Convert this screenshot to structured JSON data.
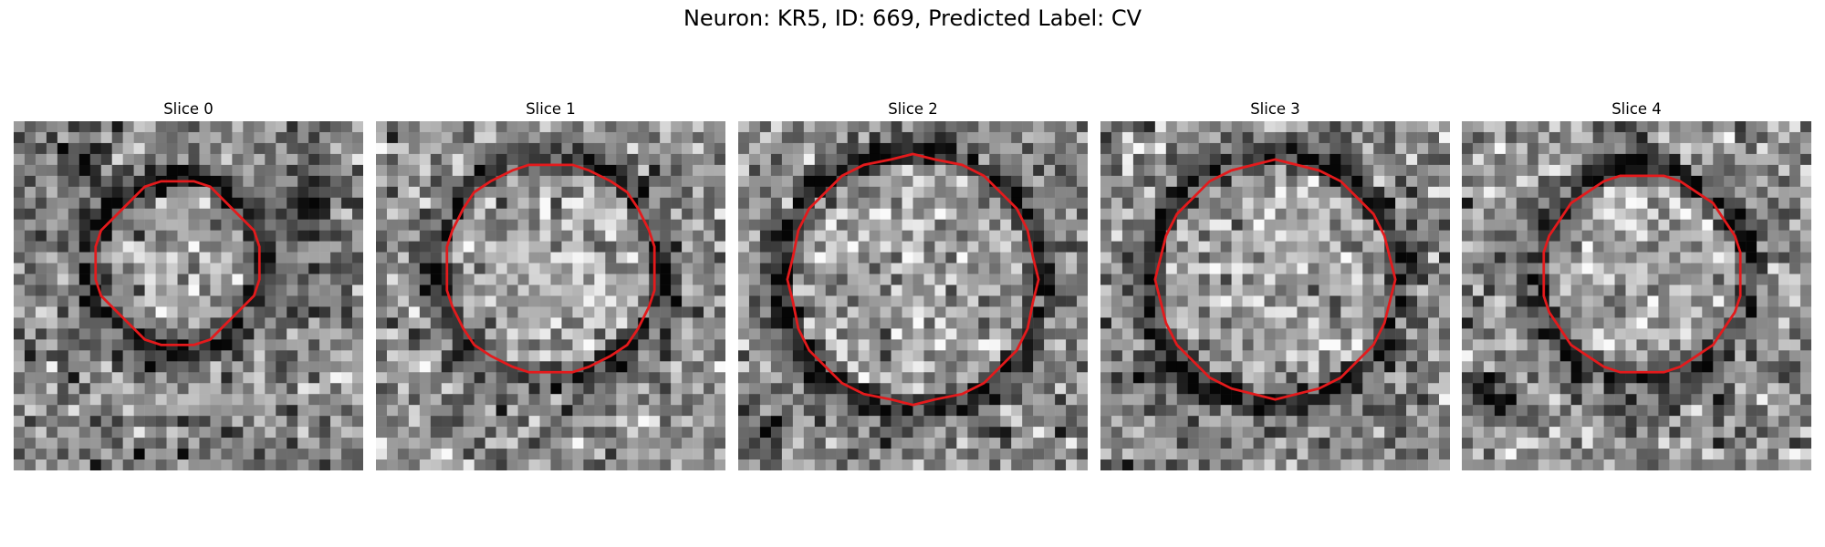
{
  "figure": {
    "title": "Neuron: KR5, ID: 669, Predicted Label: CV",
    "contour_color": "#e41a1c"
  },
  "panels": [
    {
      "title": "Slice 0",
      "image_desc": "grayscale noisy micrograph with a smaller dark ring",
      "contour": "red-outline"
    },
    {
      "title": "Slice 1",
      "image_desc": "grayscale noisy micrograph with a ring",
      "contour": "red-outline"
    },
    {
      "title": "Slice 2",
      "image_desc": "grayscale noisy micrograph with a large dark ring",
      "contour": "red-outline"
    },
    {
      "title": "Slice 3",
      "image_desc": "grayscale noisy micrograph with a faint ring",
      "contour": "red-outline"
    },
    {
      "title": "Slice 4",
      "image_desc": "grayscale noisy micrograph with a dark ring",
      "contour": "red-outline"
    }
  ]
}
